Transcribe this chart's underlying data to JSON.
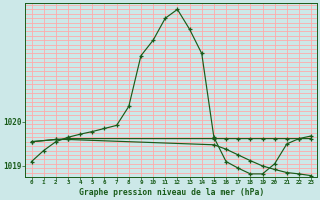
{
  "title": "Graphe pression niveau de la mer (hPa)",
  "background_color": "#cce8e8",
  "grid_color": "#ffaaaa",
  "line_color": "#1a5c1a",
  "xlim": [
    -0.5,
    23.5
  ],
  "ylim": [
    1018.75,
    1022.7
  ],
  "yticks": [
    1019,
    1020
  ],
  "ytick_labels": [
    "1019",
    "1020"
  ],
  "xticks": [
    0,
    1,
    2,
    3,
    4,
    5,
    6,
    7,
    8,
    9,
    10,
    11,
    12,
    13,
    14,
    15,
    16,
    17,
    18,
    19,
    20,
    21,
    22,
    23
  ],
  "series1_x": [
    0,
    1,
    2,
    3,
    4,
    5,
    6,
    7,
    8,
    9,
    10,
    11,
    12,
    13,
    14,
    15,
    16,
    17,
    18,
    19,
    20,
    21,
    22,
    23
  ],
  "series1_y": [
    1019.1,
    1019.35,
    1019.55,
    1019.65,
    1019.72,
    1019.78,
    1019.85,
    1019.92,
    1020.35,
    1021.5,
    1021.85,
    1022.35,
    1022.55,
    1022.1,
    1021.55,
    1019.65,
    1019.1,
    1018.95,
    1018.82,
    1018.82,
    1019.05,
    1019.5,
    1019.62,
    1019.68
  ],
  "series2_x": [
    0,
    2,
    3,
    15,
    16,
    17,
    18,
    19,
    20,
    21,
    22,
    23
  ],
  "series2_y": [
    1019.55,
    1019.6,
    1019.6,
    1019.48,
    1019.38,
    1019.25,
    1019.12,
    1019.0,
    1018.92,
    1018.85,
    1018.82,
    1018.78
  ],
  "series3_x": [
    0,
    2,
    3,
    15,
    16,
    17,
    18,
    19,
    20,
    21,
    22,
    23
  ],
  "series3_y": [
    1019.55,
    1019.6,
    1019.62,
    1019.62,
    1019.62,
    1019.62,
    1019.62,
    1019.62,
    1019.62,
    1019.62,
    1019.62,
    1019.62
  ]
}
